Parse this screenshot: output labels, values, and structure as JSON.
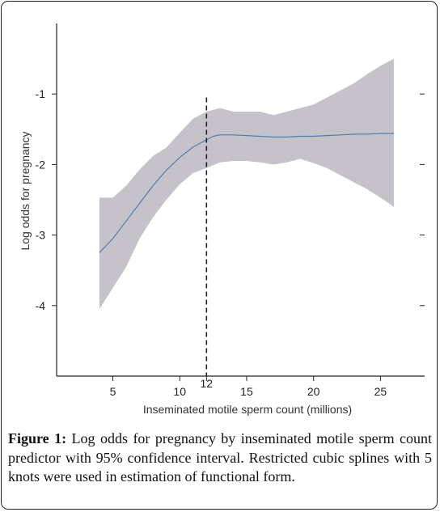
{
  "chart_data": {
    "type": "line",
    "xlabel": "Inseminated motile sperm count (millions)",
    "ylabel": "Log odds for pregnancy",
    "xlim": [
      0.8,
      28.3
    ],
    "ylim": [
      -5.0,
      0.0
    ],
    "x_ticks": [
      5,
      10,
      15,
      20,
      25
    ],
    "y_ticks": [
      -1,
      -2,
      -3,
      -4
    ],
    "highlight_x": 12,
    "highlight_label": "12",
    "series": [
      {
        "kind": "line",
        "x": [
          4,
          5,
          6,
          7,
          8,
          9,
          10,
          11,
          12,
          12.5,
          13,
          14,
          15,
          16,
          17,
          18,
          19,
          20,
          21,
          22,
          23,
          24,
          25,
          26
        ],
        "y": [
          -3.25,
          -3.05,
          -2.8,
          -2.55,
          -2.3,
          -2.08,
          -1.9,
          -1.75,
          -1.65,
          -1.6,
          -1.58,
          -1.58,
          -1.59,
          -1.6,
          -1.61,
          -1.61,
          -1.6,
          -1.6,
          -1.59,
          -1.58,
          -1.57,
          -1.57,
          -1.56,
          -1.56
        ]
      },
      {
        "kind": "band",
        "x": [
          4,
          5,
          6,
          7,
          8,
          9,
          10,
          11,
          12,
          13,
          14,
          15,
          16,
          17,
          18,
          19,
          20,
          21,
          22,
          23,
          24,
          25,
          26
        ],
        "upper": [
          -2.47,
          -2.47,
          -2.3,
          -2.07,
          -1.88,
          -1.76,
          -1.55,
          -1.35,
          -1.25,
          -1.2,
          -1.25,
          -1.25,
          -1.25,
          -1.3,
          -1.25,
          -1.2,
          -1.15,
          -1.05,
          -0.95,
          -0.85,
          -0.72,
          -0.6,
          -0.5
        ],
        "lower": [
          -4.05,
          -3.75,
          -3.45,
          -3.05,
          -2.75,
          -2.5,
          -2.28,
          -2.12,
          -2.05,
          -1.97,
          -1.95,
          -1.95,
          -1.97,
          -2.0,
          -1.97,
          -1.92,
          -1.98,
          -2.05,
          -2.15,
          -2.25,
          -2.35,
          -2.47,
          -2.6
        ]
      }
    ]
  },
  "caption": {
    "label": "Figure 1:",
    "text": " Log odds for pregnancy by inseminated motile sperm count predictor with 95% confidence interval. Restricted cubic splines with 5 knots were used in estimation of functional form."
  },
  "colors": {
    "band": "#c5c2ca",
    "line": "#4f7fb0",
    "axis": "#222222",
    "dashed": "#222222"
  }
}
